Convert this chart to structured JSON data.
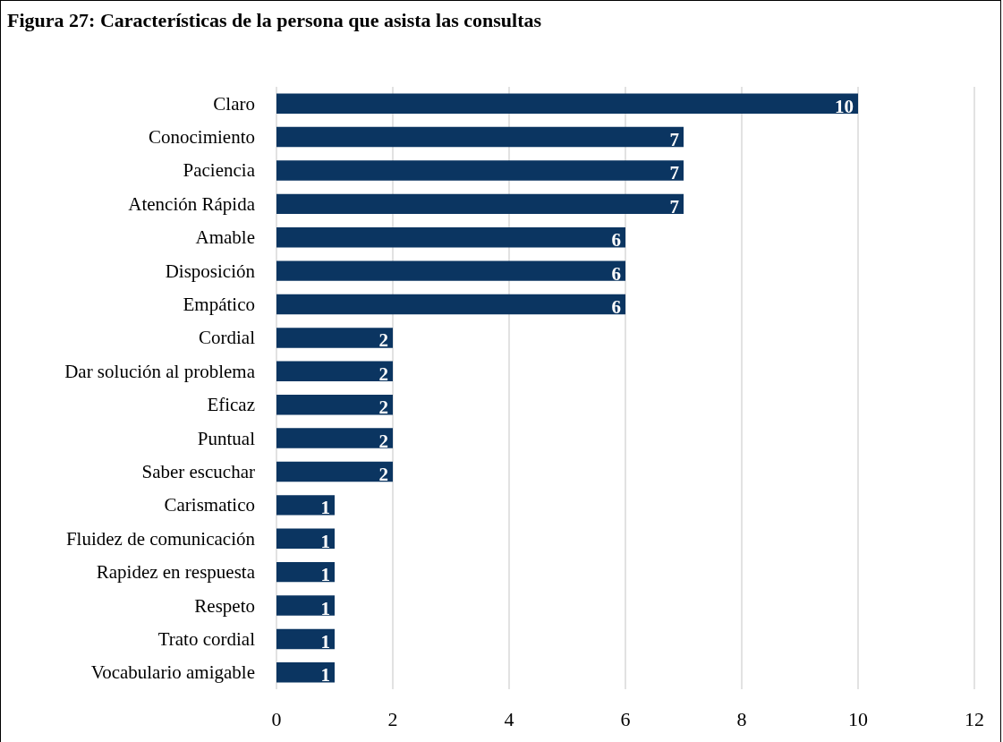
{
  "chart_data": {
    "type": "bar",
    "orientation": "horizontal",
    "title": "Figura 27: Características de la persona que asista las consultas",
    "categories": [
      "Claro",
      "Conocimiento",
      "Paciencia",
      "Atención Rápida",
      "Amable",
      "Disposición",
      "Empático",
      "Cordial",
      "Dar solución al problema",
      "Eficaz",
      "Puntual",
      "Saber escuchar",
      "Carismatico",
      "Fluidez de comunicación",
      "Rapidez en respuesta",
      "Respeto",
      "Trato cordial",
      "Vocabulario amigable"
    ],
    "values": [
      10,
      7,
      7,
      7,
      6,
      6,
      6,
      2,
      2,
      2,
      2,
      2,
      1,
      1,
      1,
      1,
      1,
      1
    ],
    "color": "#0b3561",
    "xlim": [
      0,
      12
    ],
    "xticks": [
      0,
      2,
      4,
      6,
      8,
      10,
      12
    ],
    "grid": "x",
    "data_labels": true
  }
}
